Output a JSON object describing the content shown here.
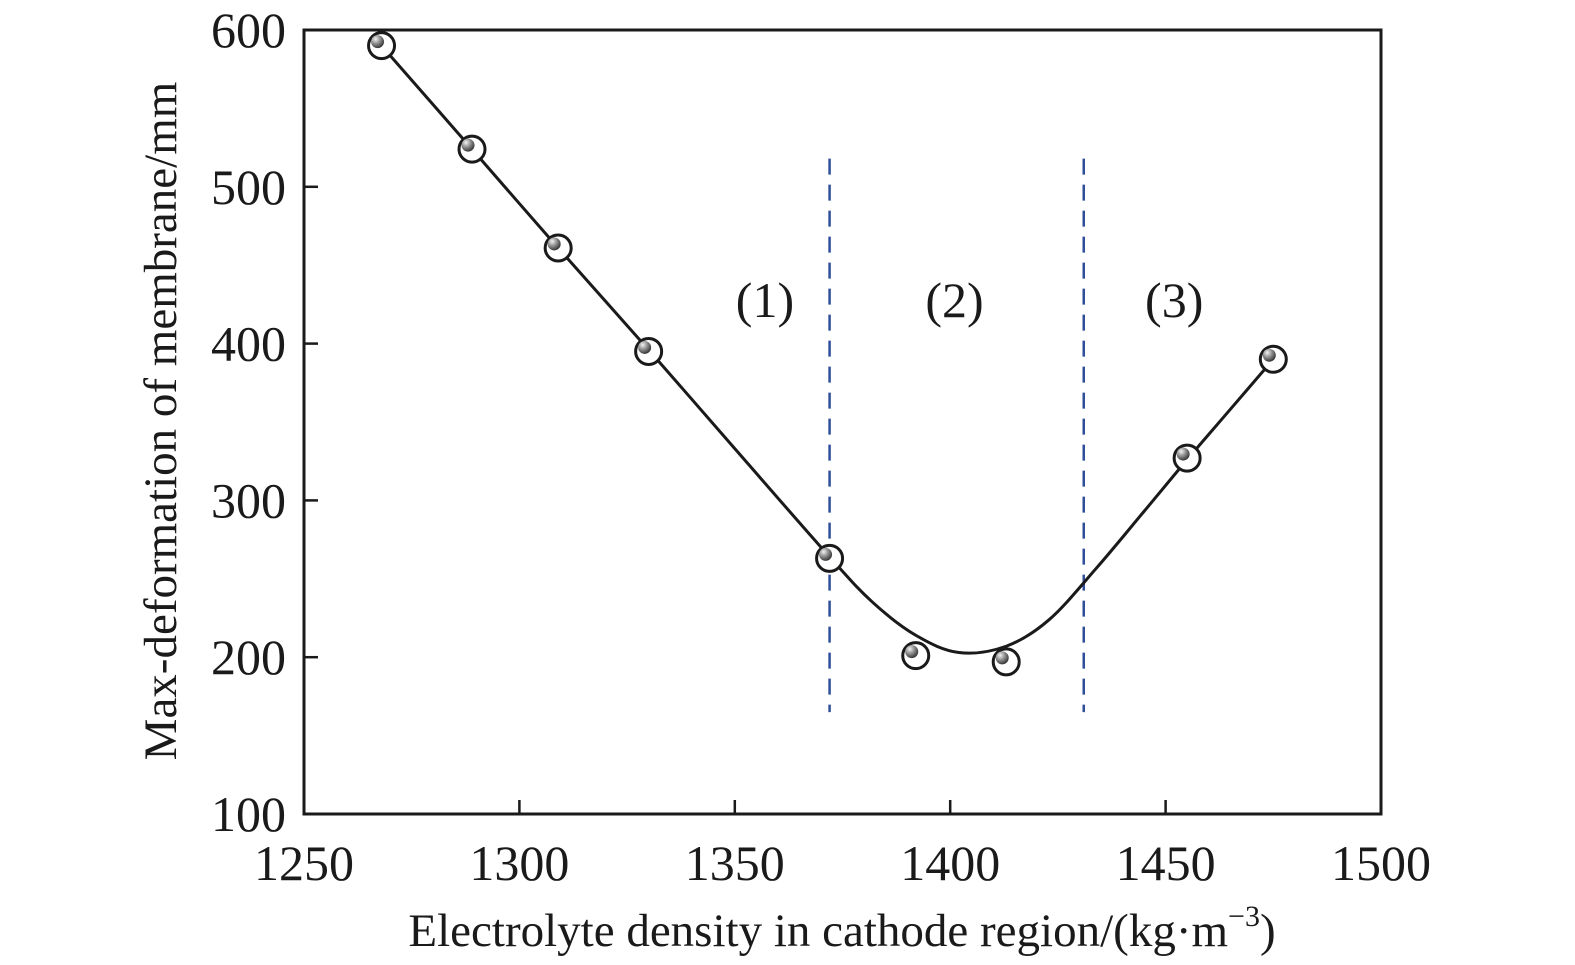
{
  "chart_data": {
    "type": "scatter",
    "xlabel": "Electrolyte density in cathode region/(kg·m",
    "xlabel_sup": "−3",
    "xlabel_tail": ")",
    "ylabel": "Max-deformation of membrane/mm",
    "xlim": [
      1250,
      1500
    ],
    "ylim": [
      100,
      600
    ],
    "x_ticks": [
      "1250",
      "1300",
      "1350",
      "1400",
      "1450",
      "1500"
    ],
    "y_ticks": [
      "100",
      "200",
      "300",
      "400",
      "500",
      "600"
    ],
    "grid": false,
    "series": [
      {
        "points": [
          {
            "x": 1268,
            "y": 590
          },
          {
            "x": 1289,
            "y": 524
          },
          {
            "x": 1309,
            "y": 461
          },
          {
            "x": 1330,
            "y": 395
          },
          {
            "x": 1372,
            "y": 263
          },
          {
            "x": 1392,
            "y": 201
          },
          {
            "x": 1413,
            "y": 197
          },
          {
            "x": 1455,
            "y": 327
          },
          {
            "x": 1475,
            "y": 390
          }
        ],
        "fit_curve": [
          {
            "x": 1268,
            "y": 590
          },
          {
            "x": 1289,
            "y": 524
          },
          {
            "x": 1309,
            "y": 461
          },
          {
            "x": 1330,
            "y": 396
          },
          {
            "x": 1350,
            "y": 333
          },
          {
            "x": 1372,
            "y": 264
          },
          {
            "x": 1382,
            "y": 235
          },
          {
            "x": 1392,
            "y": 214
          },
          {
            "x": 1402,
            "y": 203
          },
          {
            "x": 1413,
            "y": 207
          },
          {
            "x": 1423,
            "y": 224
          },
          {
            "x": 1434,
            "y": 257
          },
          {
            "x": 1445,
            "y": 293
          },
          {
            "x": 1455,
            "y": 326
          },
          {
            "x": 1465,
            "y": 358
          },
          {
            "x": 1475,
            "y": 390
          }
        ],
        "color": "#1a1a1a"
      }
    ],
    "region_dividers": {
      "x": [
        1372,
        1431
      ],
      "y_range": [
        165,
        518
      ],
      "color": "#2f4f9a"
    },
    "region_labels": [
      {
        "text": "(1)",
        "x": 1357,
        "y": 417
      },
      {
        "text": "(2)",
        "x": 1401,
        "y": 417
      },
      {
        "text": "(3)",
        "x": 1452,
        "y": 417
      }
    ]
  }
}
